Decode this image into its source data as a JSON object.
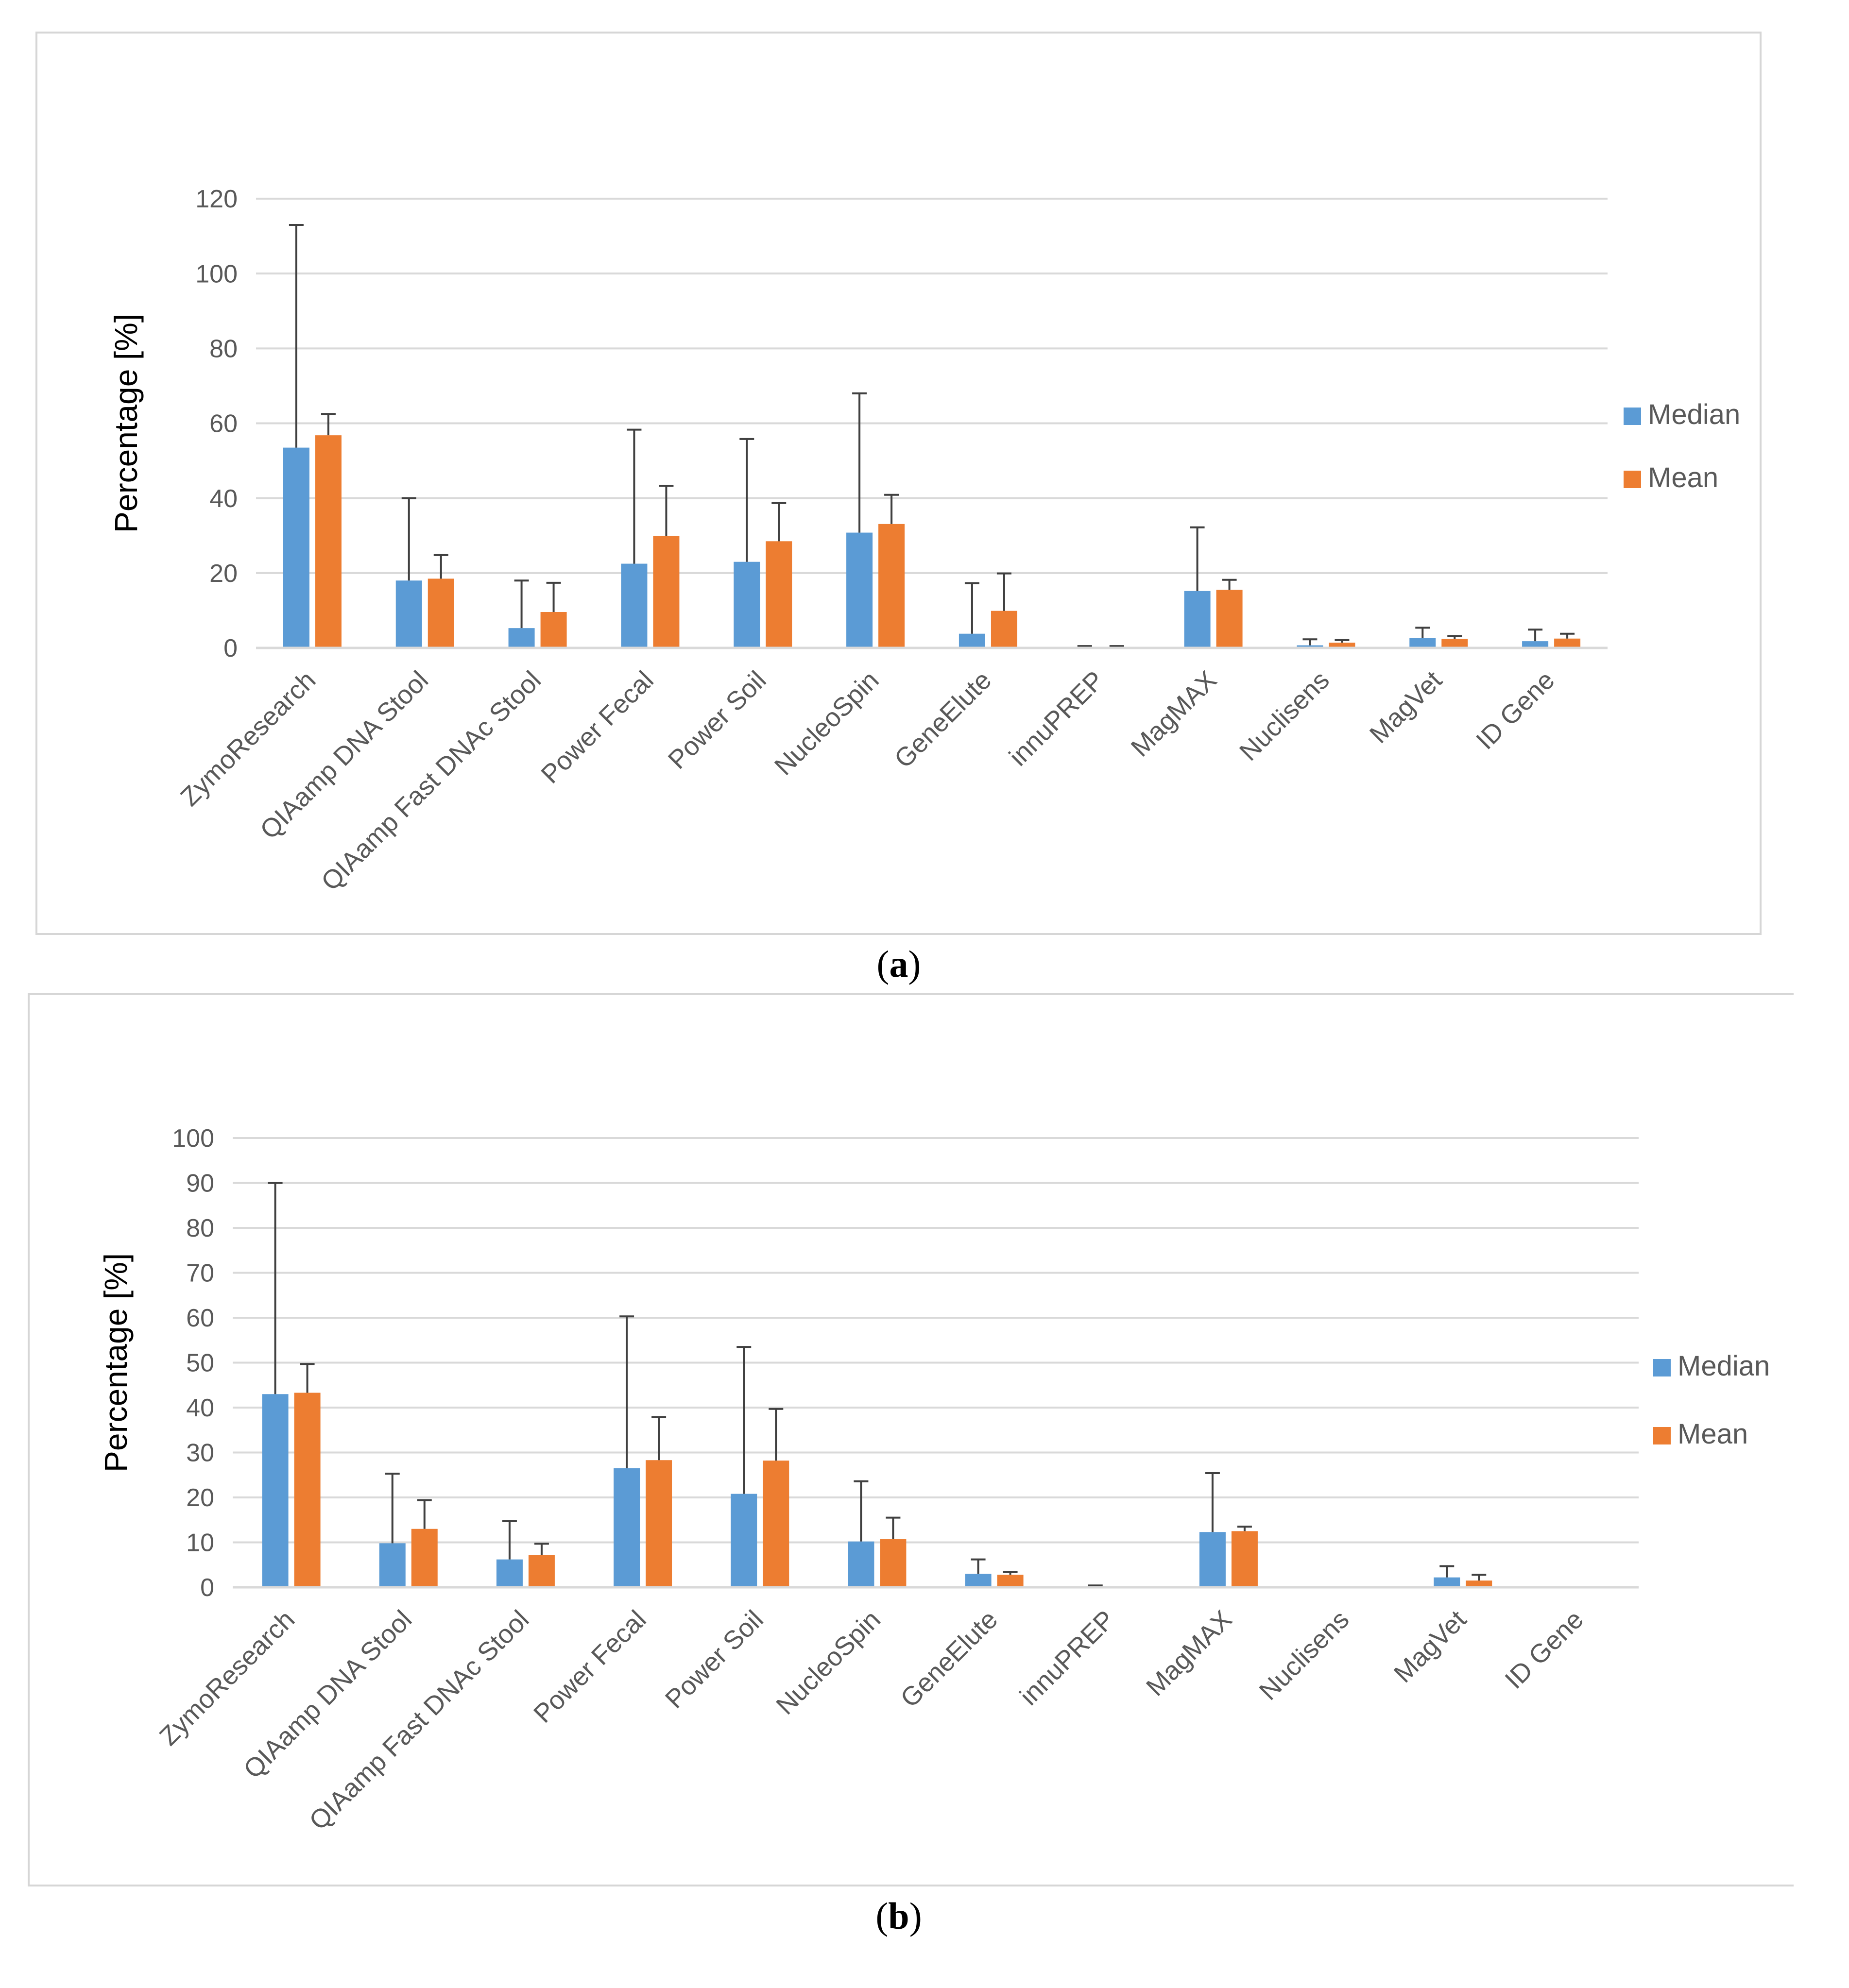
{
  "captions": {
    "a": "a",
    "b": "b"
  },
  "colors": {
    "median": "#5b9bd5",
    "mean": "#ed7d31",
    "grid": "#d9d9d9",
    "axis": "#d9d9d9",
    "text": "#595959",
    "error": "#404040"
  },
  "chart_data": [
    {
      "id": "a",
      "type": "bar",
      "title": "",
      "xlabel": "",
      "ylabel": "Percentage [%]",
      "ylim": [
        0,
        120
      ],
      "yticks": [
        0,
        20,
        40,
        60,
        80,
        100,
        120
      ],
      "legend": "right",
      "grid": true,
      "categories": [
        "ZymoResearch",
        "QIAamp DNA Stool",
        "QIAamp Fast DNAc Stool",
        "Power Fecal",
        "Power Soil",
        "NucleoSpin",
        "GeneElute",
        "innuPREP",
        "MagMAX",
        "Nuclisens",
        "MagVet",
        "ID Gene"
      ],
      "series": [
        {
          "name": "Median",
          "values": [
            53.5,
            18,
            5.3,
            22.5,
            23,
            30.8,
            3.8,
            0.2,
            15.2,
            0.7,
            2.6,
            1.8
          ],
          "error": [
            59.5,
            22,
            12.7,
            35.8,
            32.8,
            37.2,
            13.5,
            0.3,
            17,
            1.6,
            2.8,
            3.1
          ]
        },
        {
          "name": "Mean",
          "values": [
            56.8,
            18.5,
            9.6,
            29.9,
            28.5,
            33.1,
            9.9,
            0.2,
            15.5,
            1.4,
            2.4,
            2.5
          ],
          "error": [
            5.7,
            6.3,
            7.8,
            13.4,
            10.2,
            7.8,
            10,
            0.3,
            2.7,
            0.7,
            0.8,
            1.3
          ]
        }
      ]
    },
    {
      "id": "b",
      "type": "bar",
      "title": "",
      "xlabel": "",
      "ylabel": "Percentage [%]",
      "ylim": [
        0,
        100
      ],
      "yticks": [
        0,
        10,
        20,
        30,
        40,
        50,
        60,
        70,
        80,
        90,
        100
      ],
      "legend": "right",
      "grid": true,
      "categories": [
        "ZymoResearch",
        "QIAamp DNA Stool",
        "QIAamp Fast DNAc Stool",
        "Power Fecal",
        "Power Soil",
        "NucleoSpin",
        "GeneElute",
        "innuPREP",
        "MagMAX",
        "Nuclisens",
        "MagVet",
        "ID Gene"
      ],
      "series": [
        {
          "name": "Median",
          "values": [
            43,
            9.8,
            6.2,
            26.5,
            20.8,
            10.2,
            3,
            0.2,
            12.3,
            0,
            2.2,
            0
          ],
          "error": [
            47,
            15.5,
            8.5,
            33.8,
            32.7,
            13.4,
            3.2,
            0.2,
            13.1,
            0,
            2.5,
            0
          ]
        },
        {
          "name": "Mean",
          "values": [
            43.3,
            13,
            7.2,
            28.3,
            28.2,
            10.7,
            2.8,
            0,
            12.5,
            0,
            1.5,
            0
          ],
          "error": [
            6.4,
            6.4,
            2.5,
            9.6,
            11.5,
            4.8,
            0.6,
            0,
            1,
            0,
            1.3,
            0
          ]
        }
      ]
    }
  ]
}
